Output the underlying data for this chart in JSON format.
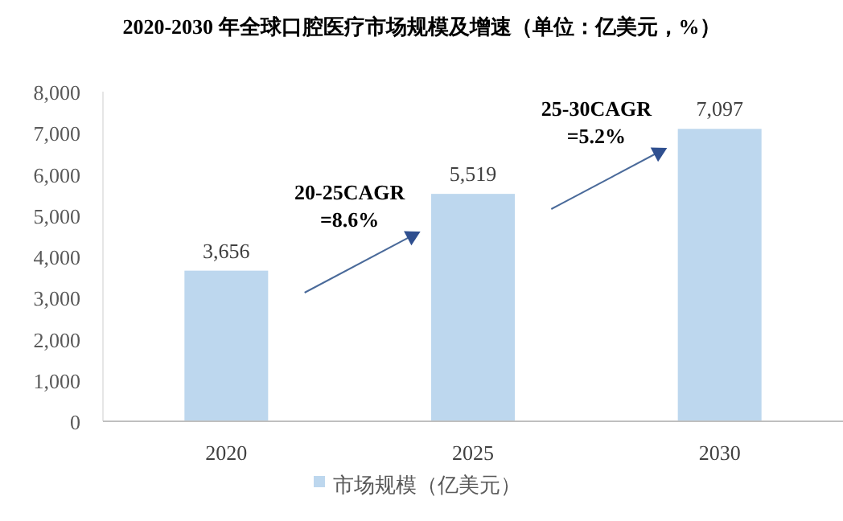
{
  "chart_data": {
    "type": "bar",
    "title": "2020-2030 年全球口腔医疗市场规模及增速（单位：亿美元，%）",
    "categories": [
      "2020",
      "2025",
      "2030"
    ],
    "series": [
      {
        "name": "市场规模（亿美元）",
        "color": "#bdd7ee",
        "values": [
          3656,
          5519,
          7097
        ],
        "value_labels": [
          "3,656",
          "5,519",
          "7,097"
        ]
      }
    ],
    "ylim": [
      0,
      8000
    ],
    "yticks": [
      {
        "value": 0,
        "label": "0"
      },
      {
        "value": 1000,
        "label": "1,000"
      },
      {
        "value": 2000,
        "label": "2,000"
      },
      {
        "value": 3000,
        "label": "3,000"
      },
      {
        "value": 4000,
        "label": "4,000"
      },
      {
        "value": 5000,
        "label": "5,000"
      },
      {
        "value": 6000,
        "label": "6,000"
      },
      {
        "value": 7000,
        "label": "7,000"
      },
      {
        "value": 8000,
        "label": "8,000"
      }
    ],
    "grid": false,
    "legend": "bottom",
    "annotations": [
      "20-25CAGR =8.6%",
      "25-30CAGR =5.2%"
    ]
  }
}
